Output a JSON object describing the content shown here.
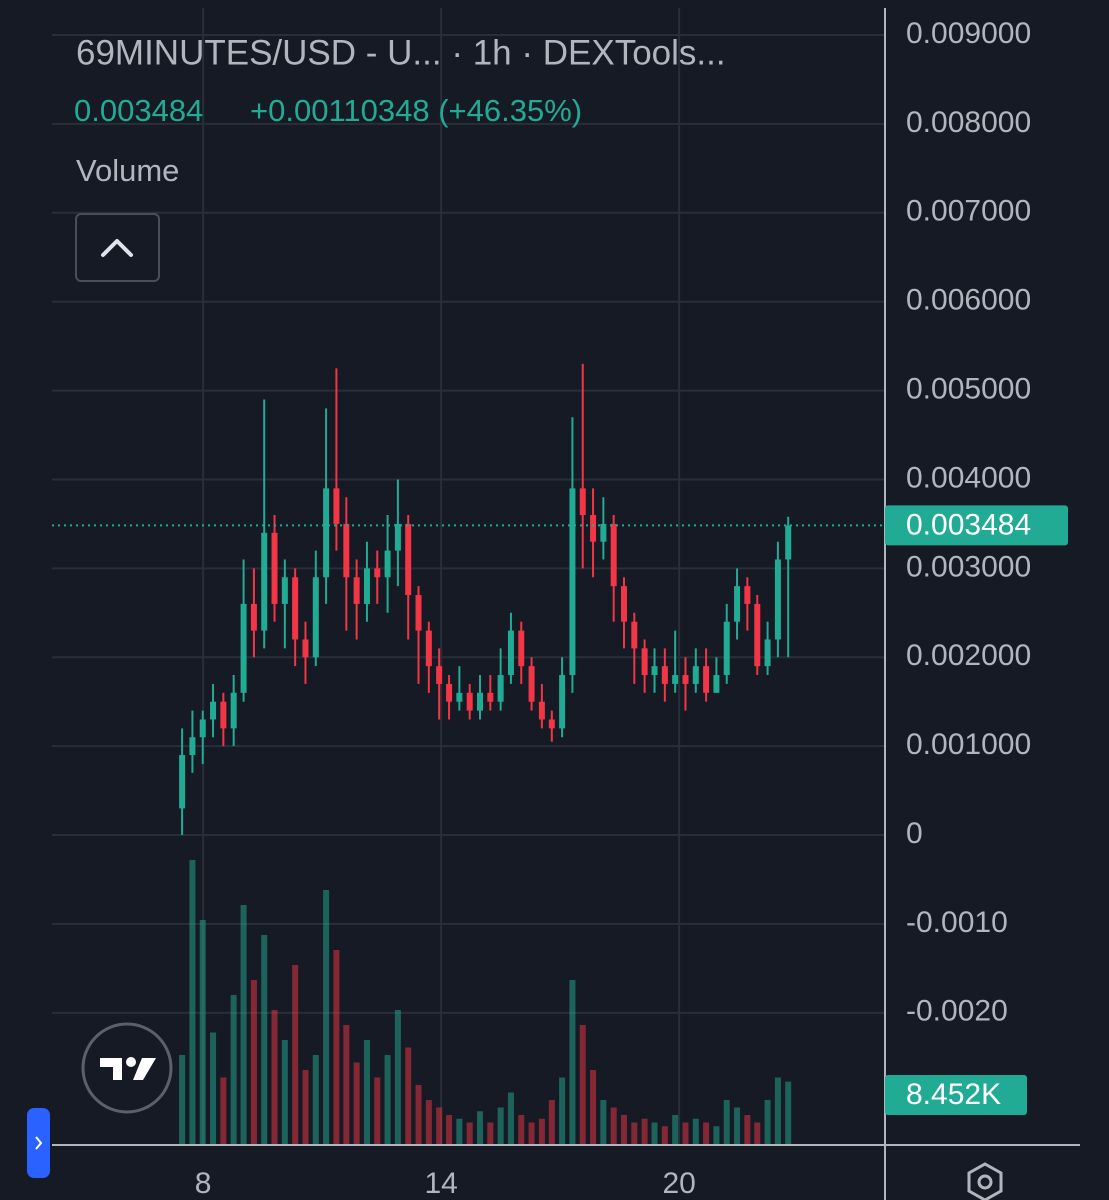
{
  "chart_data": {
    "type": "candlestick",
    "title": "69MINUTES/USD - U... · 1h · DEXTools...",
    "change": "+0.00110348 (+46.35%)",
    "last_price": 0.003484,
    "up_color": "#22ab94",
    "down_color": "#f23645",
    "grid": true,
    "xlim": [
      4.19,
      25.19
    ],
    "xticks": [
      8,
      14,
      20
    ],
    "ylim": [
      -0.003487,
      0.009394
    ],
    "yticks": [
      {
        "value": 0.009,
        "label": "0.009000"
      },
      {
        "value": 0.008,
        "label": "0.008000"
      },
      {
        "value": 0.007,
        "label": "0.007000"
      },
      {
        "value": 0.006,
        "label": "0.006000"
      },
      {
        "value": 0.005,
        "label": "0.005000"
      },
      {
        "value": 0.004,
        "label": "0.004000"
      },
      {
        "value": 0.003,
        "label": "0.003000"
      },
      {
        "value": 0.002,
        "label": "0.002000"
      },
      {
        "value": 0.001,
        "label": "0.001000"
      },
      0,
      {
        "value": -0.001,
        "label": "-0.0010"
      },
      {
        "value": -0.002,
        "label": "-0.0020"
      }
    ],
    "x": [
      7.47,
      7.73,
      7.99,
      8.25,
      8.51,
      8.77,
      9.02,
      9.28,
      9.54,
      9.8,
      10.06,
      10.32,
      10.58,
      10.84,
      11.1,
      11.36,
      11.61,
      11.87,
      12.13,
      12.39,
      12.65,
      12.91,
      13.17,
      13.43,
      13.69,
      13.95,
      14.2,
      14.46,
      14.72,
      14.98,
      15.24,
      15.5,
      15.76,
      16.02,
      16.28,
      16.54,
      16.79,
      17.05,
      17.31,
      17.57,
      17.83,
      18.09,
      18.35,
      18.61,
      18.87,
      19.13,
      19.38,
      19.64,
      19.9,
      20.16,
      20.42,
      20.68,
      20.94,
      21.2,
      21.46,
      21.72,
      21.97,
      22.23,
      22.49,
      22.75
    ],
    "open": [
      0.0003,
      0.0009,
      0.0011,
      0.0013,
      0.0015,
      0.0012,
      0.0016,
      0.0026,
      0.0023,
      0.0034,
      0.0026,
      0.0029,
      0.0022,
      0.002,
      0.0029,
      0.0039,
      0.0035,
      0.0029,
      0.0026,
      0.003,
      0.0029,
      0.0032,
      0.0035,
      0.0027,
      0.0023,
      0.0019,
      0.0017,
      0.0015,
      0.0016,
      0.0014,
      0.0016,
      0.0015,
      0.0018,
      0.0023,
      0.0019,
      0.0015,
      0.0013,
      0.0012,
      0.0018,
      0.0039,
      0.0036,
      0.0033,
      0.0035,
      0.0028,
      0.0024,
      0.0021,
      0.0018,
      0.0019,
      0.0017,
      0.0018,
      0.0017,
      0.0019,
      0.0016,
      0.0018,
      0.0024,
      0.0028,
      0.0026,
      0.0019,
      0.0022,
      0.0031
    ],
    "high": [
      0.0012,
      0.0014,
      0.0014,
      0.0017,
      0.0016,
      0.0018,
      0.0031,
      0.003,
      0.0049,
      0.0036,
      0.0031,
      0.003,
      0.0024,
      0.0032,
      0.0048,
      0.00525,
      0.0038,
      0.0031,
      0.0033,
      0.0032,
      0.0036,
      0.004,
      0.0036,
      0.0028,
      0.0024,
      0.0021,
      0.0018,
      0.0019,
      0.0017,
      0.0018,
      0.0018,
      0.0021,
      0.0025,
      0.0024,
      0.002,
      0.0017,
      0.0014,
      0.002,
      0.0047,
      0.0053,
      0.0039,
      0.0038,
      0.0036,
      0.0029,
      0.0025,
      0.0022,
      0.0021,
      0.0021,
      0.0023,
      0.002,
      0.0021,
      0.0021,
      0.002,
      0.0026,
      0.003,
      0.0029,
      0.0027,
      0.0024,
      0.0033,
      0.00358
    ],
    "low": [
      0.0,
      0.0007,
      0.0008,
      0.0011,
      0.001,
      0.001,
      0.0015,
      0.002,
      0.0021,
      0.0024,
      0.0021,
      0.0019,
      0.0017,
      0.0019,
      0.0026,
      0.0032,
      0.0023,
      0.0022,
      0.0024,
      0.0026,
      0.0025,
      0.0028,
      0.0022,
      0.0017,
      0.0016,
      0.0013,
      0.0013,
      0.0014,
      0.0013,
      0.0013,
      0.0014,
      0.0014,
      0.0017,
      0.0017,
      0.0014,
      0.0012,
      0.00105,
      0.0011,
      0.0016,
      0.003,
      0.0029,
      0.0031,
      0.0024,
      0.0021,
      0.0017,
      0.0016,
      0.0016,
      0.0015,
      0.0016,
      0.0014,
      0.0016,
      0.0015,
      0.0016,
      0.0017,
      0.0022,
      0.0023,
      0.0018,
      0.0018,
      0.002,
      0.002
    ],
    "close": [
      0.0009,
      0.0011,
      0.0013,
      0.0015,
      0.0012,
      0.0016,
      0.0026,
      0.0023,
      0.0034,
      0.0026,
      0.0029,
      0.0022,
      0.002,
      0.0029,
      0.0039,
      0.0035,
      0.0029,
      0.0026,
      0.003,
      0.0029,
      0.0032,
      0.0035,
      0.0027,
      0.0023,
      0.0019,
      0.0017,
      0.0015,
      0.0016,
      0.0014,
      0.0016,
      0.0015,
      0.0018,
      0.0023,
      0.0019,
      0.0015,
      0.0013,
      0.0012,
      0.0018,
      0.0039,
      0.0036,
      0.0033,
      0.0035,
      0.0028,
      0.0024,
      0.0021,
      0.0018,
      0.0019,
      0.0017,
      0.0018,
      0.0017,
      0.0019,
      0.0016,
      0.0018,
      0.0024,
      0.0028,
      0.0026,
      0.0019,
      0.0022,
      0.0031,
      0.003484
    ],
    "volume": {
      "name": "Volume",
      "values": [
        12000,
        38000,
        30000,
        15000,
        9000,
        20000,
        32000,
        22000,
        28000,
        18000,
        14000,
        24000,
        10000,
        12000,
        34000,
        26000,
        16000,
        11000,
        14000,
        9000,
        12000,
        18000,
        13000,
        8000,
        6000,
        5000,
        4000,
        3500,
        3000,
        4500,
        3000,
        5000,
        7000,
        4000,
        3000,
        3500,
        6000,
        9000,
        22000,
        16000,
        10000,
        6000,
        5000,
        4000,
        3000,
        3500,
        3000,
        2500,
        4000,
        3000,
        3500,
        3000,
        2500,
        6000,
        5000,
        4000,
        3000,
        6000,
        9000,
        8452
      ],
      "last_label": "8.452K"
    }
  }
}
